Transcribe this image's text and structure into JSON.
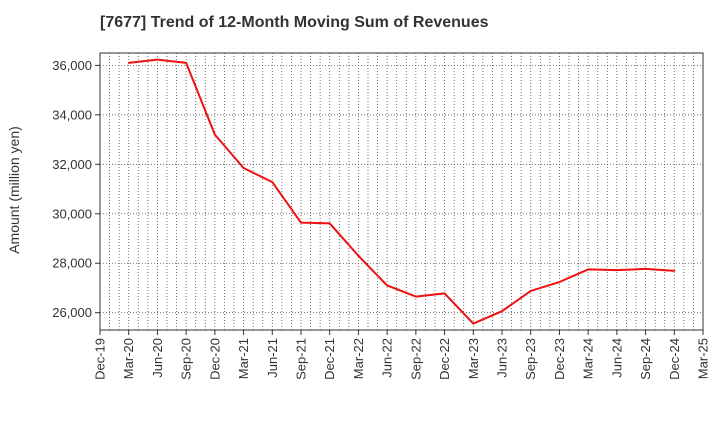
{
  "chart_data": {
    "type": "line",
    "title": "[7677]  Trend of 12-Month Moving Sum of Revenues",
    "ylabel": "Amount (million yen)",
    "xlabel": "",
    "x_tick_labels": [
      "Dec-19",
      "Mar-20",
      "Jun-20",
      "Sep-20",
      "Dec-20",
      "Mar-21",
      "Jun-21",
      "Sep-21",
      "Dec-21",
      "Mar-22",
      "Jun-22",
      "Sep-22",
      "Dec-22",
      "Mar-23",
      "Jun-23",
      "Sep-23",
      "Dec-23",
      "Mar-24",
      "Jun-24",
      "Sep-24",
      "Dec-24",
      "Mar-25"
    ],
    "y_tick_values": [
      26000,
      28000,
      30000,
      32000,
      34000,
      36000
    ],
    "y_tick_labels": [
      "26,000",
      "28,000",
      "30,000",
      "32,000",
      "34,000",
      "36,000"
    ],
    "ylim": [
      25300,
      36500
    ],
    "grid": true,
    "series": [
      {
        "color": "#ee1111",
        "points": [
          {
            "x": "Mar-20",
            "y": 36100
          },
          {
            "x": "Jun-20",
            "y": 36230
          },
          {
            "x": "Sep-20",
            "y": 36100
          },
          {
            "x": "Dec-20",
            "y": 33200
          },
          {
            "x": "Mar-21",
            "y": 31850
          },
          {
            "x": "Jun-21",
            "y": 31280
          },
          {
            "x": "Sep-21",
            "y": 29640
          },
          {
            "x": "Dec-21",
            "y": 29610
          },
          {
            "x": "Mar-22",
            "y": 28300
          },
          {
            "x": "Jun-22",
            "y": 27100
          },
          {
            "x": "Sep-22",
            "y": 26650
          },
          {
            "x": "Dec-22",
            "y": 26780
          },
          {
            "x": "Mar-23",
            "y": 25560
          },
          {
            "x": "Jun-23",
            "y": 26060
          },
          {
            "x": "Sep-23",
            "y": 26880
          },
          {
            "x": "Dec-23",
            "y": 27240
          },
          {
            "x": "Mar-24",
            "y": 27750
          },
          {
            "x": "Jun-24",
            "y": 27720
          },
          {
            "x": "Sep-24",
            "y": 27770
          },
          {
            "x": "Dec-24",
            "y": 27690
          }
        ]
      }
    ]
  }
}
